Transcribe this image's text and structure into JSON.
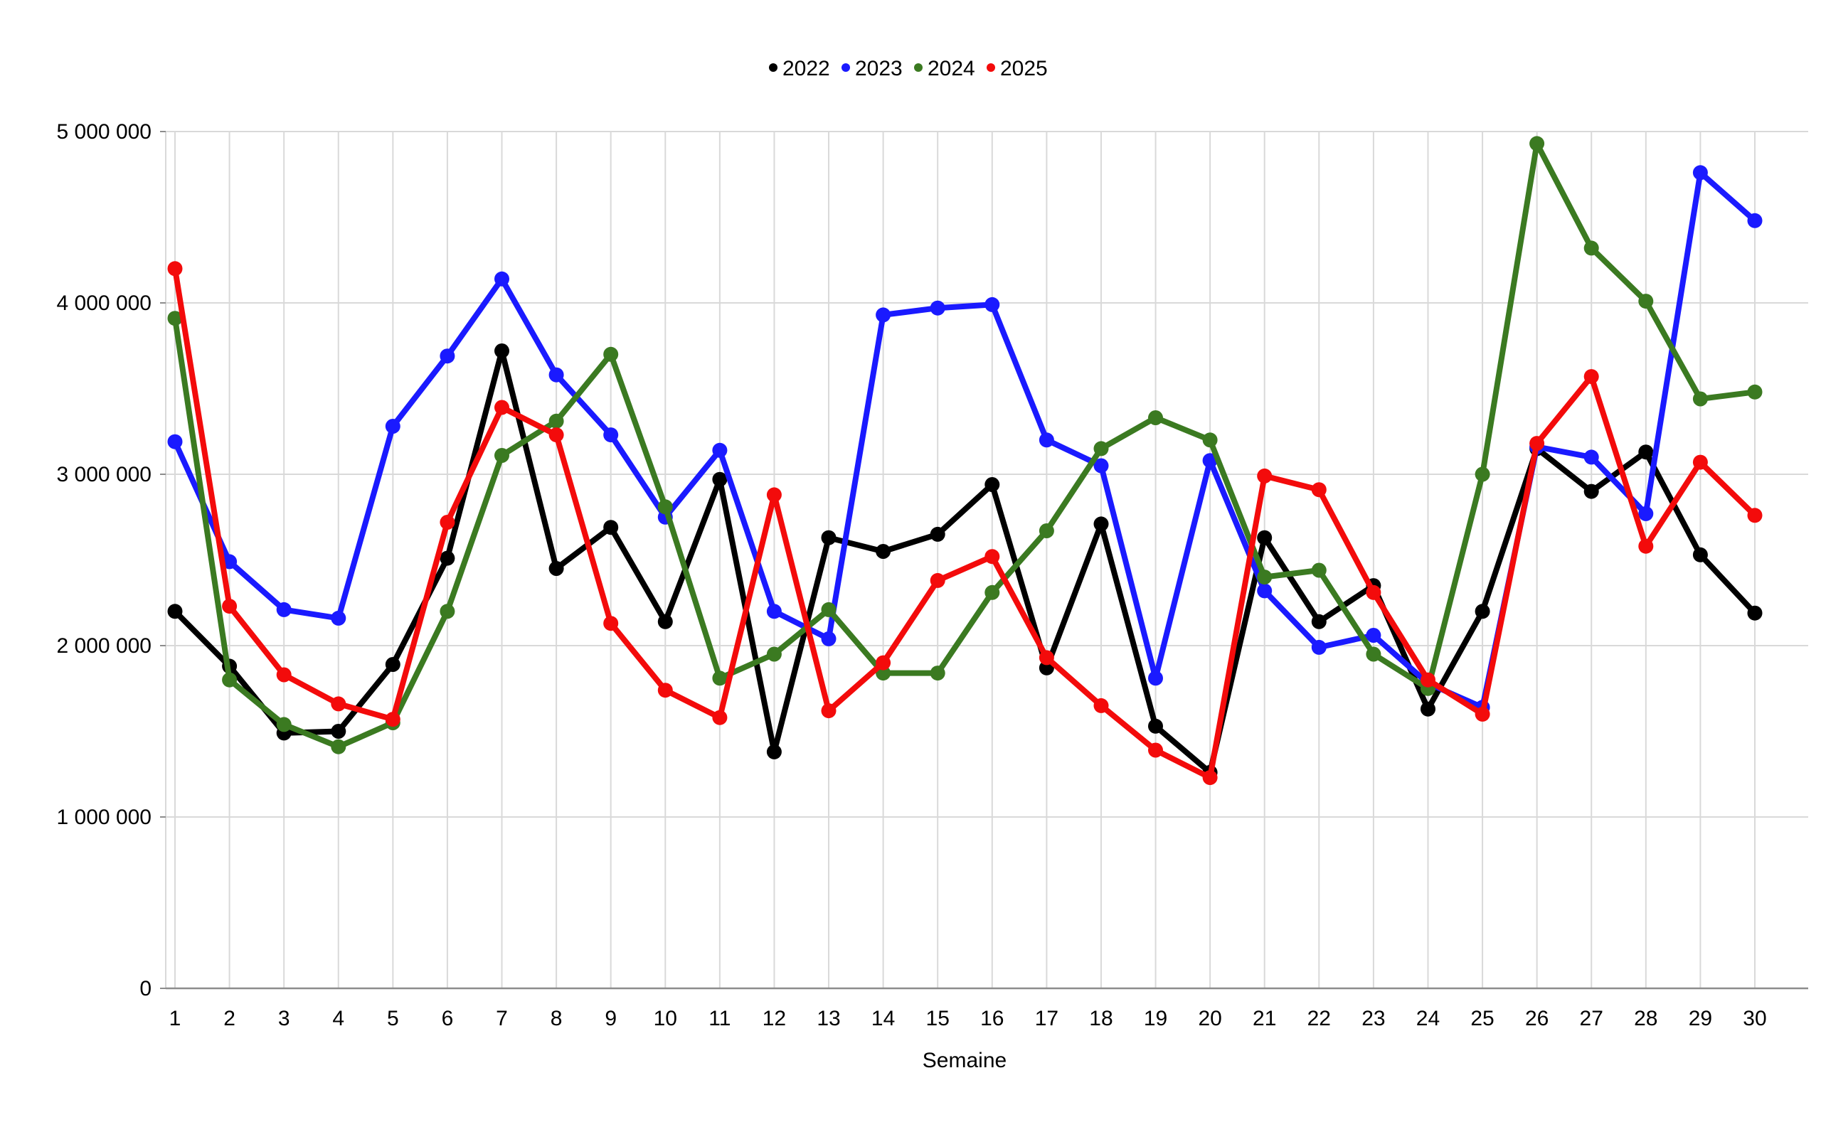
{
  "chart_data": {
    "type": "line",
    "title": "",
    "xlabel": "Semaine",
    "ylabel": "",
    "legend_position": "top-center",
    "grid": true,
    "ylim": [
      0,
      5000000
    ],
    "y_ticks": [
      0,
      1000000,
      2000000,
      3000000,
      4000000,
      5000000
    ],
    "y_tick_labels": [
      "0",
      "1 000 000",
      "2 000 000",
      "3 000 000",
      "4 000 000",
      "5 000 000"
    ],
    "x": [
      1,
      2,
      3,
      4,
      5,
      6,
      7,
      8,
      9,
      10,
      11,
      12,
      13,
      14,
      15,
      16,
      17,
      18,
      19,
      20,
      21,
      22,
      23,
      24,
      25,
      26,
      27,
      28,
      29,
      30
    ],
    "series": [
      {
        "name": "2022",
        "color": "#000000",
        "values": [
          2200000,
          1880000,
          1490000,
          1500000,
          1890000,
          2510000,
          3720000,
          2450000,
          2690000,
          2140000,
          2970000,
          1380000,
          2630000,
          2550000,
          2650000,
          2940000,
          1870000,
          2710000,
          1530000,
          1260000,
          2630000,
          2140000,
          2350000,
          1630000,
          2200000,
          3150000,
          2900000,
          3130000,
          2530000,
          2190000
        ]
      },
      {
        "name": "2023",
        "color": "#1a1aff",
        "values": [
          3190000,
          2490000,
          2210000,
          2160000,
          3280000,
          3690000,
          4140000,
          3580000,
          3230000,
          2750000,
          3140000,
          2200000,
          2040000,
          3930000,
          3970000,
          3990000,
          3200000,
          3050000,
          1810000,
          3080000,
          2320000,
          1990000,
          2060000,
          1780000,
          1640000,
          3160000,
          3100000,
          2770000,
          4760000,
          4480000
        ]
      },
      {
        "name": "2024",
        "color": "#3b7a21",
        "values": [
          3910000,
          1800000,
          1540000,
          1410000,
          1550000,
          2200000,
          3110000,
          3310000,
          3700000,
          2810000,
          1810000,
          1950000,
          2210000,
          1840000,
          1840000,
          2310000,
          2670000,
          3150000,
          3330000,
          3200000,
          2400000,
          2440000,
          1950000,
          1750000,
          3000000,
          4930000,
          4320000,
          4010000,
          3440000,
          3480000
        ]
      },
      {
        "name": "2025",
        "color": "#f30b0b",
        "values": [
          4200000,
          2230000,
          1830000,
          1660000,
          1570000,
          2720000,
          3390000,
          3230000,
          2130000,
          1740000,
          1580000,
          2880000,
          1620000,
          1900000,
          2380000,
          2520000,
          1930000,
          1650000,
          1390000,
          1230000,
          2990000,
          2910000,
          2310000,
          1800000,
          1600000,
          3180000,
          3570000,
          2580000,
          3070000,
          2760000
        ]
      }
    ]
  },
  "colors": {
    "background": "#ffffff",
    "gridline": "#d9d9d9",
    "axis": "#8c8c8c",
    "text": "#000000"
  }
}
